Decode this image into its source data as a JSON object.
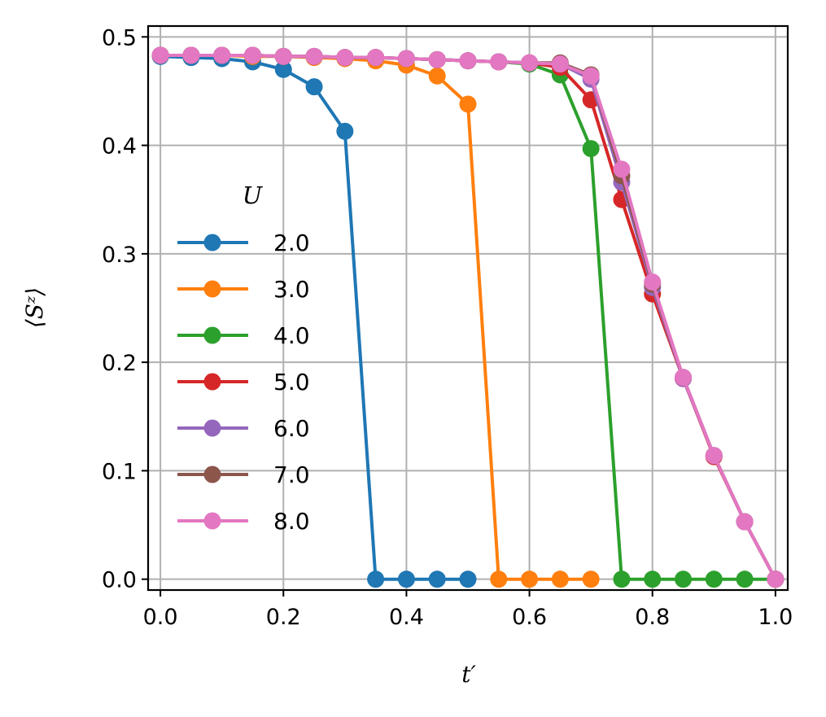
{
  "chart_data": {
    "type": "line",
    "title": "",
    "xlabel": "t′",
    "ylabel": "⟨Sᶻ⟩",
    "xlim": [
      -0.02,
      1.02
    ],
    "ylim": [
      -0.01,
      0.51
    ],
    "xticks": [
      0.0,
      0.2,
      0.4,
      0.6,
      0.8,
      1.0
    ],
    "yticks": [
      0.0,
      0.1,
      0.2,
      0.3,
      0.4,
      0.5
    ],
    "xtick_labels": [
      "0.0",
      "0.2",
      "0.4",
      "0.6",
      "0.8",
      "1.0"
    ],
    "ytick_labels": [
      "0.0",
      "0.1",
      "0.2",
      "0.3",
      "0.4",
      "0.5"
    ],
    "grid": true,
    "legend_title": "U",
    "legend_position": "left",
    "marker": "circle",
    "x": [
      0.0,
      0.05,
      0.1,
      0.15,
      0.2,
      0.25,
      0.3,
      0.35,
      0.4,
      0.45,
      0.5,
      0.55,
      0.6,
      0.65,
      0.7,
      0.75,
      0.8,
      0.85,
      0.9,
      0.95,
      1.0
    ],
    "series": [
      {
        "name": "2.0",
        "color": "#1f77b4",
        "values": [
          0.482,
          0.481,
          0.48,
          0.477,
          0.47,
          0.454,
          0.413,
          0.0,
          0.0,
          0.0,
          0.0,
          null,
          null,
          null,
          null,
          null,
          null,
          null,
          null,
          null,
          null
        ]
      },
      {
        "name": "3.0",
        "color": "#ff7f0e",
        "values": [
          0.483,
          0.483,
          0.483,
          0.482,
          0.482,
          0.481,
          0.48,
          0.478,
          0.474,
          0.464,
          0.438,
          0.0,
          0.0,
          0.0,
          0.0,
          null,
          null,
          null,
          null,
          null,
          null
        ]
      },
      {
        "name": "4.0",
        "color": "#2ca02c",
        "values": [
          0.483,
          0.483,
          0.483,
          0.483,
          0.482,
          0.482,
          0.481,
          0.481,
          0.48,
          0.479,
          0.478,
          0.477,
          0.475,
          0.465,
          0.397,
          0.0,
          0.0,
          0.0,
          0.0,
          0.0,
          0.0
        ]
      },
      {
        "name": "5.0",
        "color": "#d62728",
        "values": [
          0.483,
          0.483,
          0.483,
          0.483,
          0.482,
          0.482,
          0.481,
          0.481,
          0.48,
          0.479,
          0.478,
          0.477,
          0.476,
          0.472,
          0.442,
          0.35,
          0.263,
          0.185,
          0.113,
          0.053,
          0.0
        ]
      },
      {
        "name": "6.0",
        "color": "#9467bd",
        "values": [
          0.483,
          0.483,
          0.483,
          0.483,
          0.482,
          0.482,
          0.481,
          0.481,
          0.48,
          0.479,
          0.478,
          0.477,
          0.476,
          0.475,
          0.461,
          0.366,
          0.269,
          0.185,
          0.114,
          0.053,
          0.0
        ]
      },
      {
        "name": "7.0",
        "color": "#8c564b",
        "values": [
          0.483,
          0.483,
          0.483,
          0.483,
          0.482,
          0.482,
          0.481,
          0.481,
          0.48,
          0.479,
          0.478,
          0.477,
          0.476,
          0.476,
          0.465,
          0.372,
          0.272,
          0.186,
          0.114,
          0.053,
          0.0
        ]
      },
      {
        "name": "8.0",
        "color": "#e377c2",
        "values": [
          0.483,
          0.483,
          0.483,
          0.483,
          0.482,
          0.482,
          0.481,
          0.481,
          0.48,
          0.479,
          0.478,
          0.477,
          0.476,
          0.475,
          0.464,
          0.378,
          0.274,
          0.186,
          0.114,
          0.053,
          0.0
        ]
      }
    ]
  }
}
